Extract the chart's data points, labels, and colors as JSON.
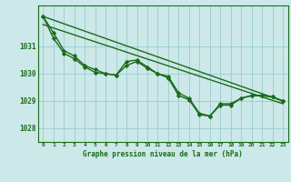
{
  "background_color": "#cce8e8",
  "grid_color": "#99cccc",
  "line_color": "#1a6b1a",
  "marker_color": "#1a6b1a",
  "xlabel": "Graphe pression niveau de la mer (hPa)",
  "xlim": [
    -0.5,
    23.5
  ],
  "ylim": [
    1027.5,
    1032.5
  ],
  "yticks": [
    1028,
    1029,
    1030,
    1031
  ],
  "xticks": [
    0,
    1,
    2,
    3,
    4,
    5,
    6,
    7,
    8,
    9,
    10,
    11,
    12,
    13,
    14,
    15,
    16,
    17,
    18,
    19,
    20,
    21,
    22,
    23
  ],
  "series": [
    {
      "x": [
        0,
        23
      ],
      "y": [
        1032.1,
        1029.0
      ],
      "marker": null,
      "linewidth": 1.0
    },
    {
      "x": [
        0,
        23
      ],
      "y": [
        1031.8,
        1028.9
      ],
      "marker": null,
      "linewidth": 1.0
    },
    {
      "x": [
        0,
        1,
        2,
        3,
        4,
        5,
        6,
        7,
        8,
        9,
        10,
        11,
        12,
        13,
        14,
        15,
        16,
        17,
        18,
        19,
        20,
        21,
        22,
        23
      ],
      "y": [
        1032.1,
        1031.5,
        1030.85,
        1030.65,
        1030.3,
        1030.15,
        1030.0,
        1029.95,
        1030.3,
        1030.45,
        1030.2,
        1030.0,
        1029.9,
        1029.3,
        1029.1,
        1028.55,
        1028.45,
        1028.85,
        1028.85,
        1029.1,
        1029.2,
        1029.2,
        1029.15,
        1029.0
      ],
      "marker": "D",
      "markersize": 2.2,
      "linewidth": 1.0
    },
    {
      "x": [
        0,
        1,
        2,
        3,
        4,
        5,
        6,
        7,
        8,
        9,
        10,
        11,
        12,
        13,
        14,
        15,
        16,
        17,
        18,
        19,
        20,
        21,
        22,
        23
      ],
      "y": [
        1032.1,
        1031.3,
        1030.75,
        1030.55,
        1030.25,
        1030.05,
        1030.0,
        1029.95,
        1030.45,
        1030.5,
        1030.25,
        1030.0,
        1029.85,
        1029.2,
        1029.05,
        1028.5,
        1028.45,
        1028.9,
        1028.9,
        1029.1,
        1029.2,
        1029.2,
        1029.15,
        1029.0
      ],
      "marker": "D",
      "markersize": 2.2,
      "linewidth": 1.0
    }
  ]
}
